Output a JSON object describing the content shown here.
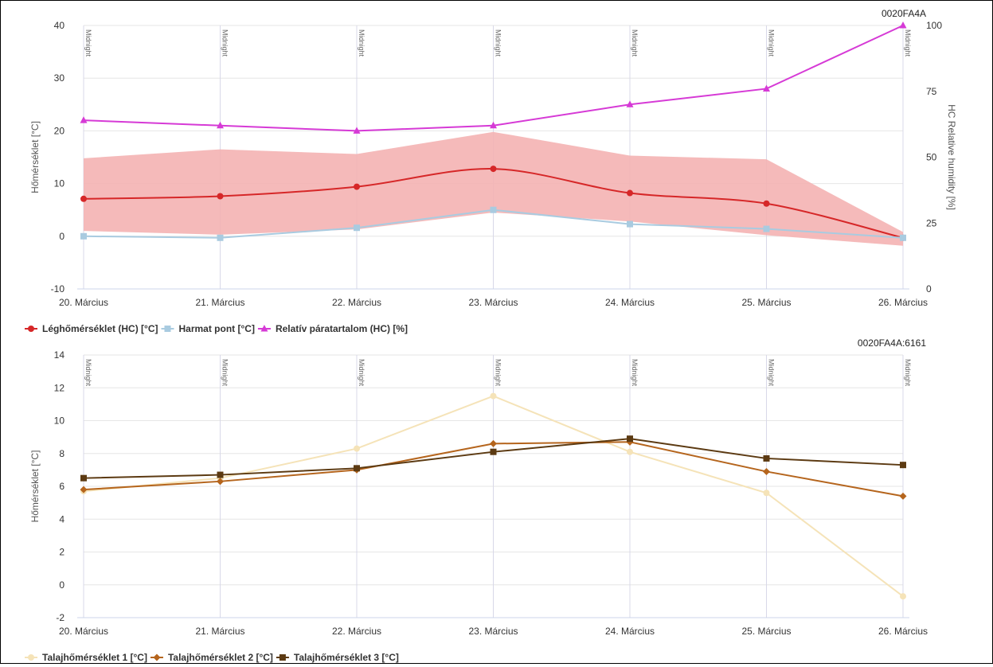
{
  "chart_data": [
    {
      "type": "line",
      "station_id": "0020FA4A",
      "x_categories": [
        "20. Március",
        "21. Március",
        "22. Március",
        "23. Március",
        "24. Március",
        "25. Március",
        "26. Március"
      ],
      "midnight_label": "Midnight",
      "ylabel_left": "Hőmérséklet [°C]",
      "ylabel_right": "HC Relative humidity [%]",
      "ylim_left": [
        -10,
        40
      ],
      "yticks_left": [
        -10,
        0,
        10,
        20,
        30,
        40
      ],
      "ylim_right": [
        0,
        100
      ],
      "yticks_right": [
        0,
        25,
        50,
        75,
        100
      ],
      "grid": true,
      "legend_position": "bottom-left",
      "range_band": {
        "color": "#f4b3b3",
        "low": [
          1.0,
          0.3,
          1.3,
          4.5,
          2.8,
          0.2,
          -1.8
        ],
        "high": [
          14.8,
          16.5,
          15.6,
          19.8,
          15.3,
          14.6,
          0.8
        ]
      },
      "series": [
        {
          "name": "Léghőmérséklet (HC) [°C]",
          "color": "#d62728",
          "marker": "circle",
          "axis": "left",
          "smooth": true,
          "values": [
            7.1,
            7.6,
            9.4,
            12.8,
            8.2,
            6.2,
            -0.3
          ]
        },
        {
          "name": "Harmat pont [°C]",
          "color": "#a9cbe0",
          "marker": "square",
          "axis": "left",
          "values": [
            0.0,
            -0.3,
            1.6,
            5.0,
            2.3,
            1.4,
            -0.3
          ]
        },
        {
          "name": "Relatív páratartalom (HC) [%]",
          "color": "#d63ad6",
          "marker": "triangle",
          "axis": "right",
          "values": [
            64,
            62,
            60,
            62,
            70,
            76,
            100
          ]
        }
      ]
    },
    {
      "type": "line",
      "station_id": "0020FA4A:6161",
      "x_categories": [
        "20. Március",
        "21. Március",
        "22. Március",
        "23. Március",
        "24. Március",
        "25. Március",
        "26. Március"
      ],
      "midnight_label": "Midnight",
      "ylabel_left": "Hőmérséklet [°C]",
      "ylim_left": [
        -2,
        14
      ],
      "yticks_left": [
        -2,
        0,
        2,
        4,
        6,
        8,
        10,
        12,
        14
      ],
      "grid": true,
      "legend_position": "bottom-left",
      "series": [
        {
          "name": "Talajhőmérséklet 1 [°C]",
          "color": "#f5e3b8",
          "marker": "circle",
          "axis": "left",
          "values": [
            5.7,
            6.5,
            8.3,
            11.5,
            8.1,
            5.6,
            -0.7
          ]
        },
        {
          "name": "Talajhőmérséklet 2 [°C]",
          "color": "#b5651d",
          "marker": "diamond",
          "axis": "left",
          "values": [
            5.8,
            6.3,
            7.0,
            8.6,
            8.7,
            6.9,
            5.4
          ]
        },
        {
          "name": "Talajhőmérséklet 3 [°C]",
          "color": "#5c3a12",
          "marker": "square",
          "axis": "left",
          "values": [
            6.5,
            6.7,
            7.1,
            8.1,
            8.9,
            7.7,
            7.3
          ]
        }
      ]
    }
  ]
}
